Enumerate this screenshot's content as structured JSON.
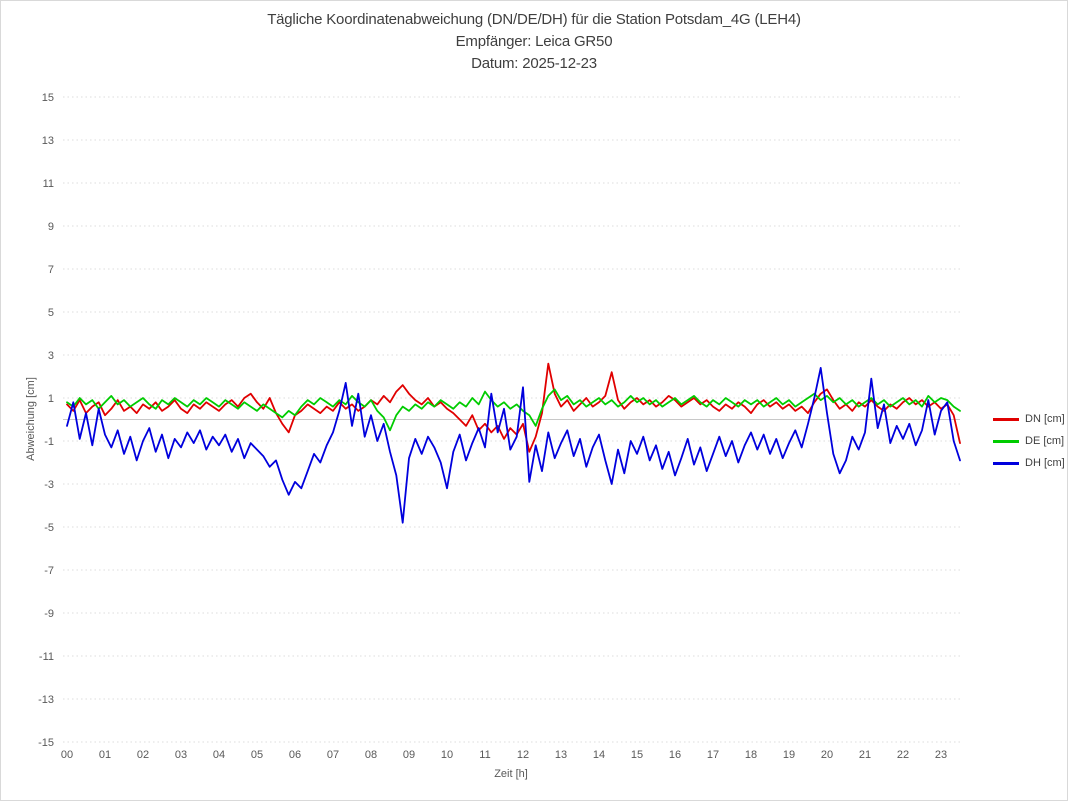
{
  "title": "Tägliche Koordinatenabweichung (DN/DE/DH) für die Station Potsdam_4G (LEH4)",
  "subtitle_receiver": "Empfänger: Leica GR50",
  "subtitle_date": "Datum: 2025-12-23",
  "colors": {
    "title_text": "#3f3f3f",
    "axis_text": "#595959",
    "grid": "#dcdcdc",
    "zero_line": "#c8c8c8",
    "border": "#d9d9d9",
    "background": "#ffffff"
  },
  "chart_data": {
    "type": "line",
    "title": "Tägliche Koordinatenabweichung (DN/DE/DH) für die Station Potsdam_4G (LEH4)",
    "subtitle": "Empfänger: Leica GR50 — Datum: 2025-12-23",
    "xlabel": "Zeit [h]",
    "ylabel": "Abweichung [cm]",
    "ylim": [
      -15,
      15
    ],
    "xlim_hours": [
      0,
      24
    ],
    "y_ticks": [
      15,
      13,
      11,
      9,
      7,
      5,
      3,
      1,
      -1,
      -3,
      -5,
      -7,
      -9,
      -11,
      -13,
      -15
    ],
    "x_tick_labels": [
      "00",
      "01",
      "02",
      "03",
      "04",
      "05",
      "06",
      "07",
      "08",
      "09",
      "10",
      "11",
      "12",
      "13",
      "14",
      "15",
      "16",
      "17",
      "18",
      "19",
      "20",
      "21",
      "22",
      "23"
    ],
    "grid": "horizontal dotted gridlines at odd cm values, solid light line at 0",
    "legend_position": "right",
    "x_start": "00:00",
    "x_step_minutes": 10,
    "series": [
      {
        "name": "DN [cm]",
        "color": "#e00000",
        "values": [
          0.7,
          0.4,
          0.9,
          0.3,
          0.6,
          0.8,
          0.2,
          0.5,
          0.9,
          0.4,
          0.6,
          0.3,
          0.7,
          0.5,
          0.8,
          0.4,
          0.6,
          0.9,
          0.5,
          0.3,
          0.7,
          0.5,
          0.8,
          0.6,
          0.4,
          0.7,
          0.9,
          0.6,
          1.0,
          1.2,
          0.8,
          0.5,
          1.0,
          0.3,
          -0.2,
          -0.6,
          0.2,
          0.4,
          0.7,
          0.5,
          0.3,
          0.6,
          0.4,
          0.8,
          0.5,
          0.7,
          0.4,
          0.6,
          0.9,
          0.7,
          1.1,
          0.8,
          1.3,
          1.6,
          1.2,
          0.9,
          0.7,
          1.0,
          0.6,
          0.8,
          0.5,
          0.3,
          0.0,
          -0.3,
          0.2,
          -0.5,
          -0.2,
          -0.6,
          -0.3,
          -0.9,
          -0.4,
          -0.7,
          -0.2,
          -1.5,
          -0.8,
          0.3,
          2.6,
          1.2,
          0.6,
          0.9,
          0.4,
          0.7,
          1.0,
          0.6,
          0.8,
          1.1,
          2.2,
          0.9,
          0.5,
          0.8,
          1.0,
          0.7,
          0.9,
          0.6,
          0.8,
          1.1,
          0.9,
          0.6,
          0.8,
          1.0,
          0.7,
          0.9,
          0.6,
          0.4,
          0.7,
          0.5,
          0.8,
          0.6,
          0.3,
          0.7,
          0.9,
          0.6,
          0.8,
          0.5,
          0.7,
          0.4,
          0.6,
          0.3,
          0.8,
          1.2,
          1.4,
          0.9,
          0.5,
          0.7,
          0.4,
          0.8,
          0.6,
          0.9,
          0.6,
          0.4,
          0.7,
          0.5,
          0.8,
          1.0,
          0.7,
          0.9,
          0.6,
          0.8,
          0.5,
          0.7,
          0.2,
          -1.1
        ]
      },
      {
        "name": "DE [cm]",
        "color": "#00cc00",
        "values": [
          0.8,
          0.6,
          1.0,
          0.7,
          0.9,
          0.5,
          0.8,
          1.1,
          0.7,
          0.9,
          0.6,
          0.8,
          1.0,
          0.7,
          0.5,
          0.9,
          0.7,
          1.0,
          0.8,
          0.6,
          0.9,
          0.7,
          1.0,
          0.8,
          0.6,
          0.9,
          0.7,
          0.5,
          0.8,
          0.6,
          0.4,
          0.7,
          0.5,
          0.3,
          0.1,
          0.4,
          0.2,
          0.6,
          0.9,
          0.7,
          1.0,
          0.8,
          0.6,
          0.9,
          0.7,
          1.1,
          0.8,
          0.6,
          0.9,
          0.4,
          0.1,
          -0.5,
          0.2,
          0.6,
          0.4,
          0.7,
          0.5,
          0.8,
          0.6,
          0.9,
          0.7,
          0.5,
          0.8,
          0.6,
          1.0,
          0.7,
          1.3,
          0.9,
          0.6,
          0.8,
          0.5,
          0.7,
          0.4,
          0.2,
          -0.3,
          0.5,
          1.1,
          1.4,
          0.9,
          1.1,
          0.7,
          0.9,
          0.6,
          0.8,
          1.0,
          0.7,
          0.9,
          0.6,
          0.8,
          1.1,
          0.8,
          1.0,
          0.7,
          0.9,
          0.6,
          0.8,
          1.0,
          0.7,
          0.9,
          1.1,
          0.8,
          0.6,
          0.9,
          0.7,
          1.0,
          0.8,
          0.6,
          0.9,
          0.7,
          0.9,
          0.6,
          0.8,
          1.0,
          0.7,
          0.9,
          0.6,
          0.8,
          1.0,
          1.2,
          0.9,
          1.1,
          0.8,
          1.0,
          0.7,
          0.9,
          0.6,
          0.8,
          1.0,
          0.7,
          0.9,
          0.6,
          0.8,
          1.0,
          0.7,
          0.9,
          0.6,
          1.1,
          0.8,
          1.0,
          0.9,
          0.6,
          0.4
        ]
      },
      {
        "name": "DH [cm]",
        "color": "#0000dd",
        "values": [
          -0.3,
          0.8,
          -0.9,
          0.3,
          -1.2,
          0.5,
          -0.7,
          -1.3,
          -0.5,
          -1.6,
          -0.8,
          -1.9,
          -1.0,
          -0.4,
          -1.5,
          -0.7,
          -1.8,
          -0.9,
          -1.3,
          -0.6,
          -1.1,
          -0.5,
          -1.4,
          -0.8,
          -1.2,
          -0.7,
          -1.5,
          -0.9,
          -1.8,
          -1.1,
          -1.4,
          -1.7,
          -2.2,
          -1.9,
          -2.8,
          -3.5,
          -2.9,
          -3.2,
          -2.4,
          -1.6,
          -2.0,
          -1.2,
          -0.6,
          0.4,
          1.7,
          -0.3,
          1.2,
          -0.8,
          0.2,
          -1.0,
          -0.2,
          -1.5,
          -2.6,
          -4.8,
          -1.8,
          -0.9,
          -1.6,
          -0.8,
          -1.3,
          -2.0,
          -3.2,
          -1.5,
          -0.7,
          -1.9,
          -1.1,
          -0.4,
          -1.3,
          1.2,
          -0.6,
          0.5,
          -1.4,
          -0.8,
          1.5,
          -2.9,
          -1.2,
          -2.4,
          -0.6,
          -1.8,
          -1.1,
          -0.5,
          -1.7,
          -0.9,
          -2.2,
          -1.3,
          -0.7,
          -1.9,
          -3.0,
          -1.4,
          -2.5,
          -1.0,
          -1.6,
          -0.8,
          -1.9,
          -1.2,
          -2.3,
          -1.5,
          -2.6,
          -1.8,
          -0.9,
          -2.1,
          -1.3,
          -2.4,
          -1.6,
          -0.8,
          -1.7,
          -1.0,
          -2.0,
          -1.2,
          -0.6,
          -1.4,
          -0.7,
          -1.6,
          -0.9,
          -1.8,
          -1.1,
          -0.5,
          -1.3,
          -0.2,
          1.0,
          2.4,
          0.3,
          -1.6,
          -2.5,
          -1.9,
          -0.8,
          -1.4,
          -0.6,
          1.9,
          -0.4,
          0.7,
          -1.1,
          -0.3,
          -0.9,
          -0.2,
          -1.2,
          -0.5,
          0.9,
          -0.7,
          0.4,
          0.8,
          -1.0,
          -1.9
        ]
      }
    ]
  }
}
